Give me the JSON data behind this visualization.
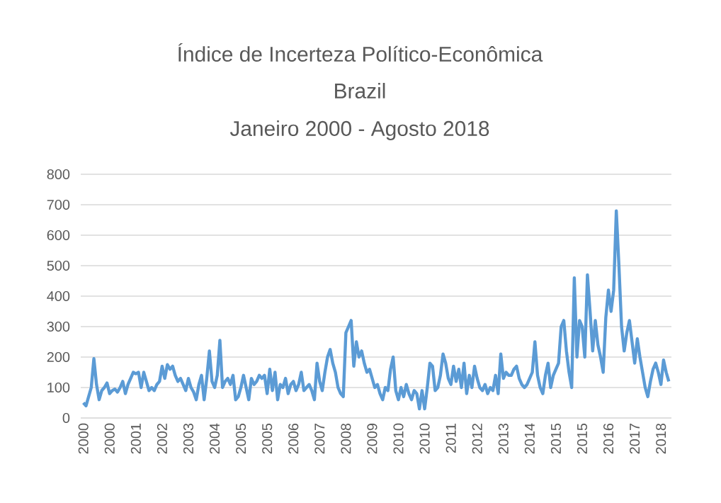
{
  "chart_data": {
    "type": "line",
    "title": "Índice de Incerteza Político-Econômica",
    "subtitle": "Brazil",
    "annotations": [
      "Janeiro 2000 - Agosto 2018"
    ],
    "categories": [
      "2000",
      null,
      null,
      null,
      null,
      null,
      null,
      null,
      null,
      null,
      "2000",
      null,
      null,
      null,
      null,
      null,
      null,
      null,
      null,
      null,
      "2001",
      null,
      null,
      null,
      null,
      null,
      null,
      null,
      null,
      null,
      "2002",
      null,
      null,
      null,
      null,
      null,
      null,
      null,
      null,
      null,
      "2003",
      null,
      null,
      null,
      null,
      null,
      null,
      null,
      null,
      null,
      "2004",
      null,
      null,
      null,
      null,
      null,
      null,
      null,
      null,
      null,
      "2005",
      null,
      null,
      null,
      null,
      null,
      null,
      null,
      null,
      null,
      "2005",
      null,
      null,
      null,
      null,
      null,
      null,
      null,
      null,
      null,
      "2006",
      null,
      null,
      null,
      null,
      null,
      null,
      null,
      null,
      null,
      "2007",
      null,
      null,
      null,
      null,
      null,
      null,
      null,
      null,
      null,
      "2008",
      null,
      null,
      null,
      null,
      null,
      null,
      null,
      null,
      null,
      "2009",
      null,
      null,
      null,
      null,
      null,
      null,
      null,
      null,
      null,
      "2010",
      null,
      null,
      null,
      null,
      null,
      null,
      null,
      null,
      null,
      "2010",
      null,
      null,
      null,
      null,
      null,
      null,
      null,
      null,
      null,
      "2011",
      null,
      null,
      null,
      null,
      null,
      null,
      null,
      null,
      null,
      "2012",
      null,
      null,
      null,
      null,
      null,
      null,
      null,
      null,
      null,
      "2013",
      null,
      null,
      null,
      null,
      null,
      null,
      null,
      null,
      null,
      "2014",
      null,
      null,
      null,
      null,
      null,
      null,
      null,
      null,
      null,
      "2015",
      null,
      null,
      null,
      null,
      null,
      null,
      null,
      null,
      null,
      "2015",
      null,
      null,
      null,
      null,
      null,
      null,
      null,
      null,
      null,
      "2016",
      null,
      null,
      null,
      null,
      null,
      null,
      null,
      null,
      null,
      "2017",
      null,
      null,
      null,
      null,
      null,
      null,
      null,
      null,
      null,
      "2018",
      null,
      null,
      null
    ],
    "series": [
      {
        "color": "#5b9bd5",
        "values": [
          50,
          40,
          70,
          100,
          195,
          110,
          60,
          90,
          100,
          115,
          80,
          90,
          95,
          85,
          100,
          120,
          80,
          110,
          130,
          150,
          145,
          150,
          100,
          150,
          120,
          90,
          100,
          90,
          110,
          120,
          170,
          130,
          175,
          160,
          170,
          140,
          120,
          130,
          110,
          90,
          130,
          100,
          85,
          60,
          110,
          140,
          60,
          130,
          220,
          120,
          100,
          140,
          255,
          100,
          120,
          130,
          110,
          140,
          60,
          70,
          100,
          140,
          100,
          60,
          130,
          110,
          120,
          140,
          130,
          140,
          80,
          160,
          90,
          150,
          60,
          110,
          100,
          130,
          80,
          110,
          120,
          90,
          110,
          150,
          90,
          100,
          110,
          90,
          60,
          180,
          120,
          90,
          150,
          200,
          225,
          180,
          150,
          100,
          80,
          70,
          280,
          300,
          320,
          170,
          250,
          200,
          220,
          180,
          150,
          160,
          130,
          100,
          110,
          80,
          60,
          100,
          90,
          160,
          200,
          90,
          60,
          100,
          70,
          110,
          80,
          60,
          90,
          80,
          30,
          90,
          30,
          100,
          180,
          170,
          90,
          100,
          140,
          210,
          180,
          130,
          110,
          170,
          120,
          160,
          100,
          180,
          80,
          140,
          100,
          170,
          130,
          100,
          90,
          110,
          80,
          100,
          90,
          140,
          80,
          210,
          130,
          150,
          140,
          140,
          160,
          170,
          130,
          110,
          100,
          110,
          130,
          150,
          250,
          140,
          100,
          80,
          140,
          180,
          100,
          140,
          160,
          180,
          300,
          320,
          220,
          150,
          100,
          460,
          200,
          320,
          300,
          200,
          470,
          350,
          220,
          320,
          240,
          200,
          150,
          330,
          420,
          350,
          420,
          680,
          500,
          300,
          220,
          280,
          320,
          250,
          180,
          260,
          200,
          150,
          100,
          70,
          120,
          160,
          180,
          150,
          110,
          190,
          150,
          120
        ]
      }
    ],
    "ylim": [
      0,
      800
    ],
    "yticks": [
      0,
      100,
      200,
      300,
      400,
      500,
      600,
      700,
      800
    ],
    "grid": "y",
    "marker": "none",
    "line_style": "solid"
  }
}
